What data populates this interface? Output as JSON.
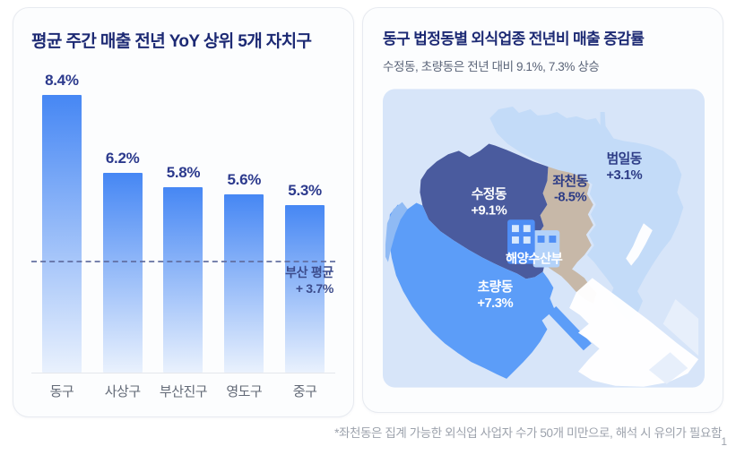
{
  "left_panel": {
    "title": "평균 주간 매출 전년 YoY 상위 5개 자치구"
  },
  "right_panel": {
    "title": "동구 법정동별 외식업종 전년비 매출 증감률",
    "subtitle": "수정동, 초량동은 전년 대비 9.1%, 7.3% 상승"
  },
  "chart_data": [
    {
      "type": "bar",
      "title": "평균 주간 매출 전년 YoY 상위 5개 자치구",
      "categories": [
        "동구",
        "사상구",
        "부산진구",
        "영도구",
        "중구"
      ],
      "values": [
        8.4,
        6.2,
        5.8,
        5.6,
        5.3
      ],
      "value_labels": [
        "8.4%",
        "6.2%",
        "5.8%",
        "5.6%",
        "5.3%"
      ],
      "unit": "%",
      "ylim": [
        0,
        9
      ],
      "grid": false,
      "bar_color_top": "#4687f4",
      "bar_color_bottom": "#e9f1fd",
      "reference_line": {
        "value": 3.7,
        "label_line1": "부산 평균",
        "label_line2": "+ 3.7%"
      }
    },
    {
      "type": "heatmap",
      "subtype": "choropleth-map",
      "title": "동구 법정동별 외식업종 전년비 매출 증감률",
      "sea_color": "#d7e5f9",
      "regions": [
        {
          "id": "sujeong",
          "name": "수정동",
          "value": "+9.1%",
          "color": "#4a5b9e",
          "text_color": "#ffffff"
        },
        {
          "id": "jwacheon",
          "name": "좌천동",
          "value": "-8.5%",
          "color": "#c7b8a8",
          "text_color": "#2d3c86"
        },
        {
          "id": "beomil",
          "name": "범일동",
          "value": "+3.1%",
          "color": "#c3dbf8",
          "text_color": "#2d3c86"
        },
        {
          "id": "choryang",
          "name": "초량동",
          "value": "+7.3%",
          "color": "#5c9df8",
          "text_color": "#ffffff"
        }
      ],
      "landmark": {
        "name": "해양수산부"
      }
    }
  ],
  "footnote": {
    "text": "*좌천동은 집계 가능한 외식업 사업자 수가 50개 미만으로, 해석 시 유의가 필요함",
    "page_number": "1"
  }
}
